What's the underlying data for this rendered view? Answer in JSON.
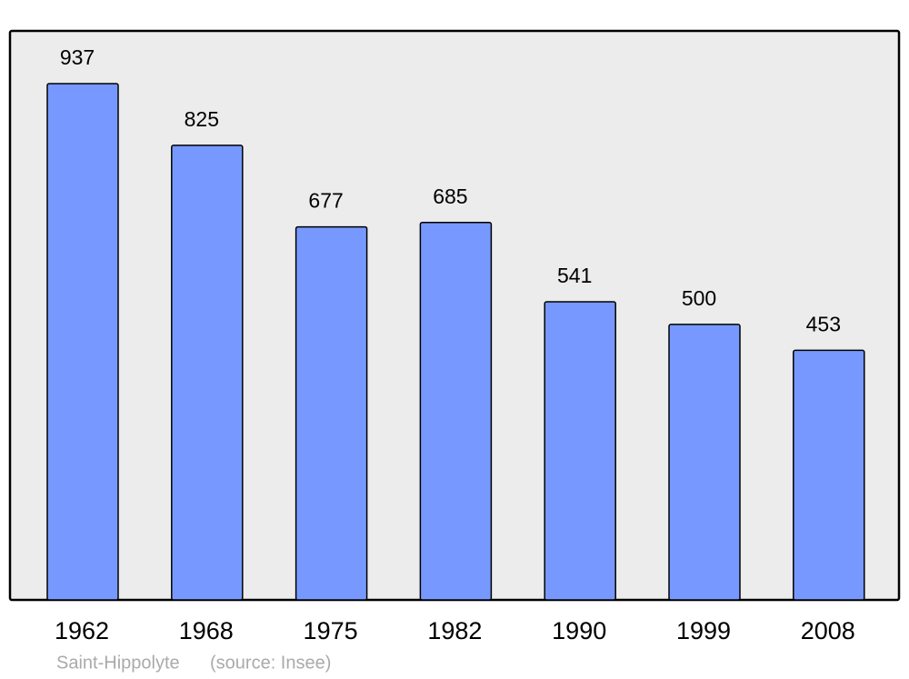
{
  "chart_data": {
    "type": "bar",
    "categories": [
      "1962",
      "1968",
      "1975",
      "1982",
      "1990",
      "1999",
      "2008"
    ],
    "values": [
      937,
      825,
      677,
      685,
      541,
      500,
      453
    ],
    "color": "#7799ff",
    "footer": "Saint-Hippolyte",
    "source": "(source: Insee)"
  }
}
